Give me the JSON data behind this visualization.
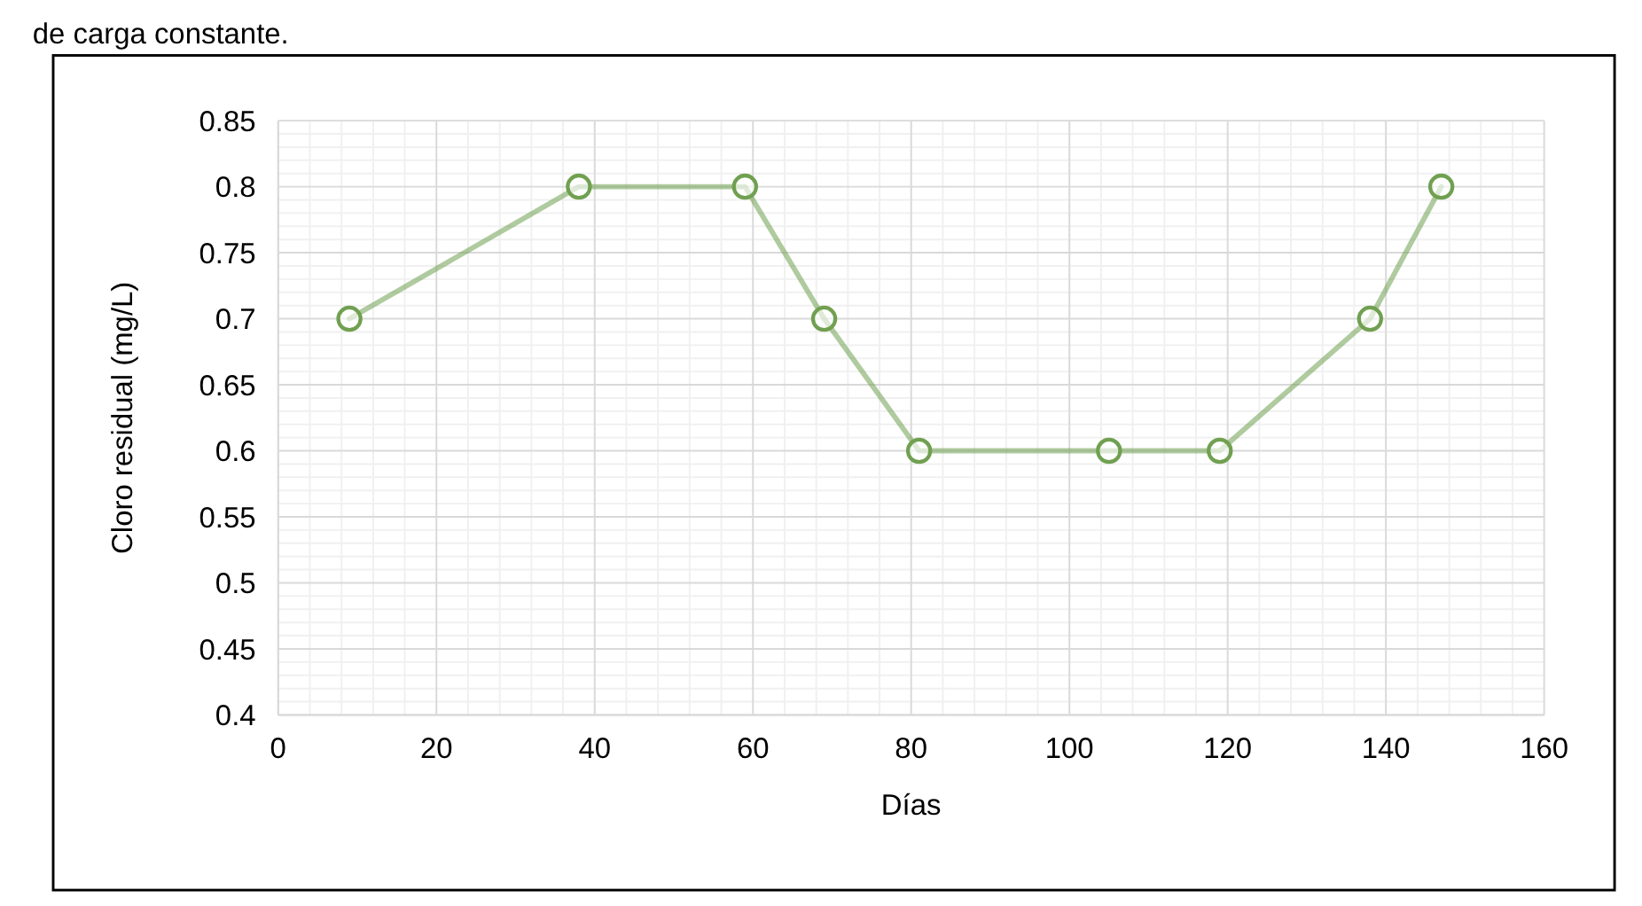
{
  "chart_data": {
    "type": "line",
    "xlabel": "Días",
    "ylabel": "Cloro residual (mg/L)",
    "annotations": [
      "de carga constante."
    ],
    "x": [
      9,
      38,
      59,
      69,
      81,
      105,
      119,
      138,
      147
    ],
    "series": [
      {
        "color": "#70a050",
        "values": [
          0.7,
          0.8,
          0.8,
          0.7,
          0.6,
          0.6,
          0.6,
          0.7,
          0.8
        ]
      }
    ],
    "xlim": [
      0,
      160
    ],
    "xticks": [
      0,
      20,
      40,
      60,
      80,
      100,
      120,
      140,
      160
    ],
    "ylim": [
      0.4,
      0.85
    ],
    "yticks": [
      0.4,
      0.45,
      0.5,
      0.55,
      0.6,
      0.65,
      0.7,
      0.75,
      0.8,
      0.85
    ],
    "grid": true,
    "marker": "circle",
    "line_style": "solid"
  }
}
